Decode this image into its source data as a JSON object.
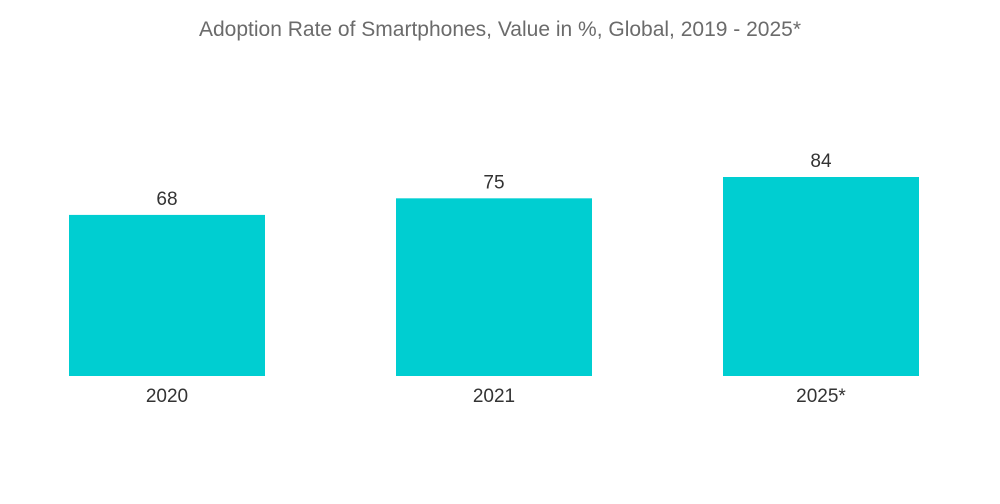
{
  "chart_data": {
    "type": "bar",
    "title": "Adoption Rate of Smartphones, Value in %, Global, 2019 - 2025*",
    "categories": [
      "2020",
      "2021",
      "2025*"
    ],
    "values": [
      68,
      75,
      84
    ],
    "data_labels": [
      "68",
      "75",
      "84"
    ],
    "xlabel": "",
    "ylabel": "",
    "ylim": [
      0,
      84
    ],
    "grid": false,
    "legend": "none",
    "bar_color": "#00CED1"
  }
}
